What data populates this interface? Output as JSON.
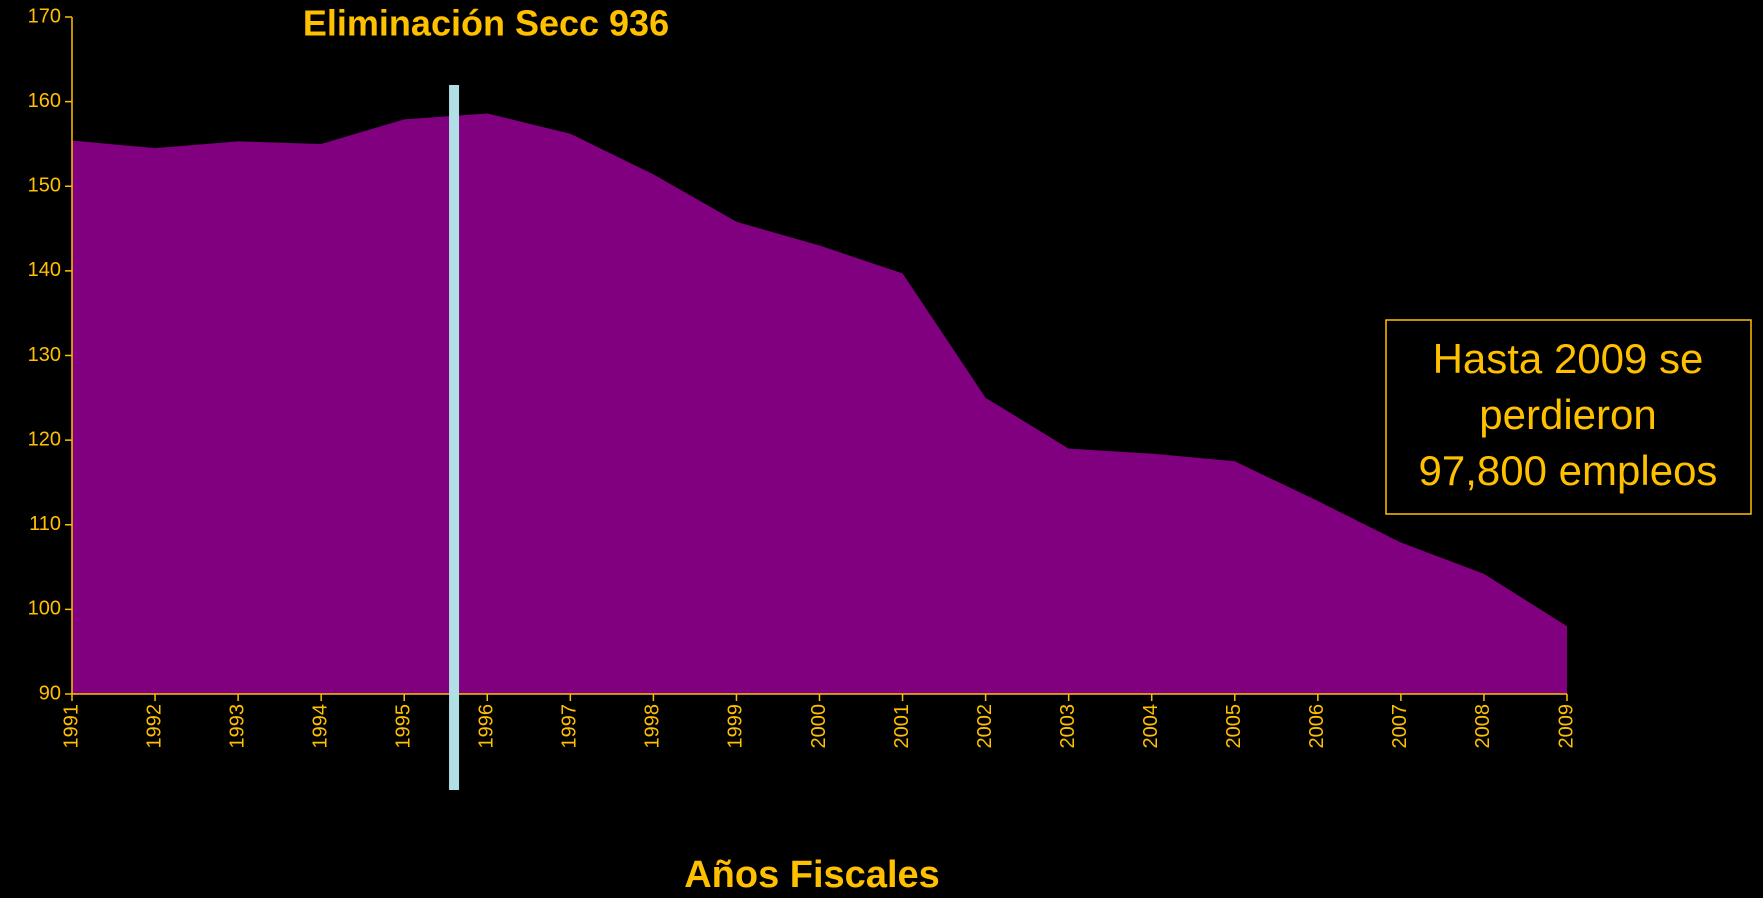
{
  "chart_data": {
    "type": "area",
    "title": "Eliminación Secc 936",
    "x_label": "Años Fiscales",
    "x": [
      1991,
      1992,
      1993,
      1994,
      1995,
      1996,
      1997,
      1998,
      1999,
      2000,
      2001,
      2002,
      2003,
      2004,
      2005,
      2006,
      2007,
      2008,
      2009
    ],
    "series": [
      {
        "color": "#800080",
        "values": [
          155.4,
          154.5,
          155.3,
          155.0,
          157.9,
          158.6,
          156.2,
          151.4,
          145.8,
          143.0,
          139.7,
          125.0,
          119.0,
          118.4,
          117.5,
          112.8,
          107.9,
          104.2,
          98.0
        ]
      }
    ],
    "xlim": [
      1991,
      2009
    ],
    "xticks": [
      1991,
      1992,
      1993,
      1994,
      1995,
      1996,
      1997,
      1998,
      1999,
      2000,
      2001,
      2002,
      2003,
      2004,
      2005,
      2006,
      2007,
      2008,
      2009
    ],
    "ylim": [
      90,
      170
    ],
    "yticks": [
      90,
      100,
      110,
      120,
      130,
      140,
      150,
      160,
      170
    ],
    "vline": {
      "x": 1995.6,
      "color": "#b0e0e6"
    },
    "annotation": [
      "Hasta 2009 se",
      "perdieron",
      "97,800 empleos"
    ],
    "text_color": "#ffc000"
  }
}
